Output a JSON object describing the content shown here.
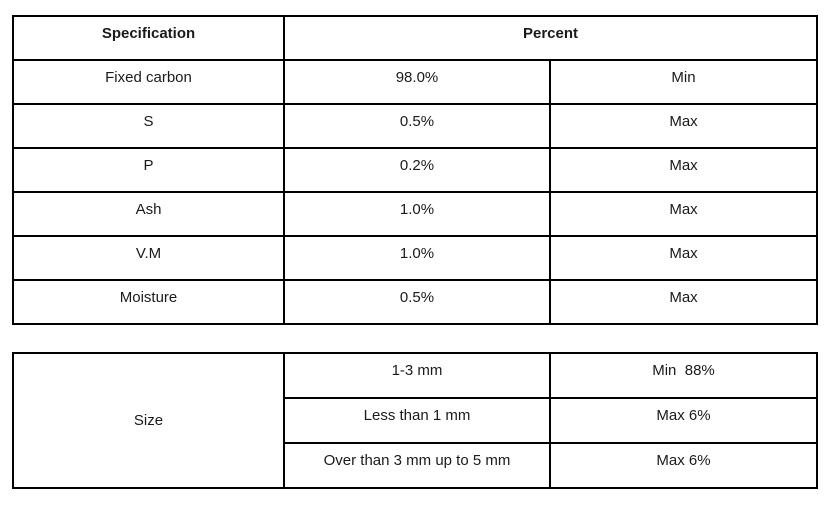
{
  "page": {
    "background": "#ffffff",
    "text_color": "#1a1a1a",
    "border_color": "#000000"
  },
  "spec_table": {
    "header": {
      "specification": "Specification",
      "percent": "Percent"
    },
    "rows": [
      {
        "name": "Fixed carbon",
        "value": "98.0%",
        "limit": "Min"
      },
      {
        "name": "S",
        "value": "0.5%",
        "limit": "Max"
      },
      {
        "name": "P",
        "value": "0.2%",
        "limit": "Max"
      },
      {
        "name": "Ash",
        "value": "1.0%",
        "limit": "Max"
      },
      {
        "name": "V.M",
        "value": "1.0%",
        "limit": "Max"
      },
      {
        "name": "Moisture",
        "value": "0.5%",
        "limit": "Max"
      }
    ]
  },
  "size_table": {
    "label": "Size",
    "rows": [
      {
        "range": "1-3 mm",
        "limit": "Min  88%"
      },
      {
        "range": "Less than 1 mm",
        "limit": "Max 6%"
      },
      {
        "range": "Over than 3 mm up to 5 mm",
        "limit": "Max 6%"
      }
    ]
  }
}
